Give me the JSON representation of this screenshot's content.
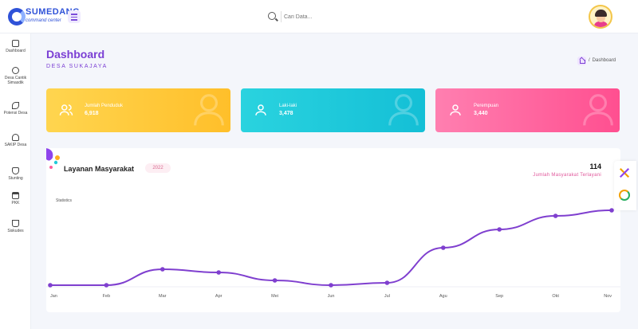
{
  "header": {
    "logo_text": "SUMEDANG",
    "logo_sub": "command center",
    "search_placeholder": "Cari Data..."
  },
  "sidebar": {
    "items": [
      {
        "label": "Dashboard",
        "icon": "home-icon"
      },
      {
        "label": "Desa Cantik Simasdik",
        "icon": "lightbulb-icon"
      },
      {
        "label": "Potensi Desa",
        "icon": "leaf-icon"
      },
      {
        "label": "SAKIP Desa",
        "icon": "rocket-icon"
      },
      {
        "label": "Stunting",
        "icon": "shield-icon"
      },
      {
        "label": "PKK",
        "icon": "calendar-icon"
      },
      {
        "label": "Siskudes",
        "icon": "cart-icon"
      }
    ]
  },
  "page": {
    "title": "Dashboard",
    "subtitle": "DESA SUKAJAYA",
    "breadcrumb_separator": "/",
    "breadcrumb": "Dashboard"
  },
  "cards": [
    {
      "label": "Jumlah Penduduk",
      "value": "6,918",
      "color": "#ffc43b",
      "icon": "users-icon"
    },
    {
      "label": "Laki-laki",
      "value": "3,478",
      "color": "#22c9d9",
      "icon": "user-icon"
    },
    {
      "label": "Perempuan",
      "value": "3,440",
      "color": "#ff6fa6",
      "icon": "user-icon"
    }
  ],
  "panel": {
    "title": "Layanan Masyarakat",
    "year": "2022",
    "total_value": "114",
    "total_label": "Jumlah Masyarakat Terlayani",
    "chart_label": "Statistics"
  },
  "chart_data": {
    "type": "line",
    "categories": [
      "Jan",
      "Feb",
      "Mar",
      "Apr",
      "Mei",
      "Jun",
      "Jul",
      "Agu",
      "Sep",
      "Okt",
      "Nov"
    ],
    "values": [
      0,
      0,
      20,
      16,
      6,
      0,
      3,
      47,
      70,
      87,
      94
    ],
    "ylim": [
      0,
      100
    ],
    "grid": false,
    "color": "#7f3fcf"
  }
}
